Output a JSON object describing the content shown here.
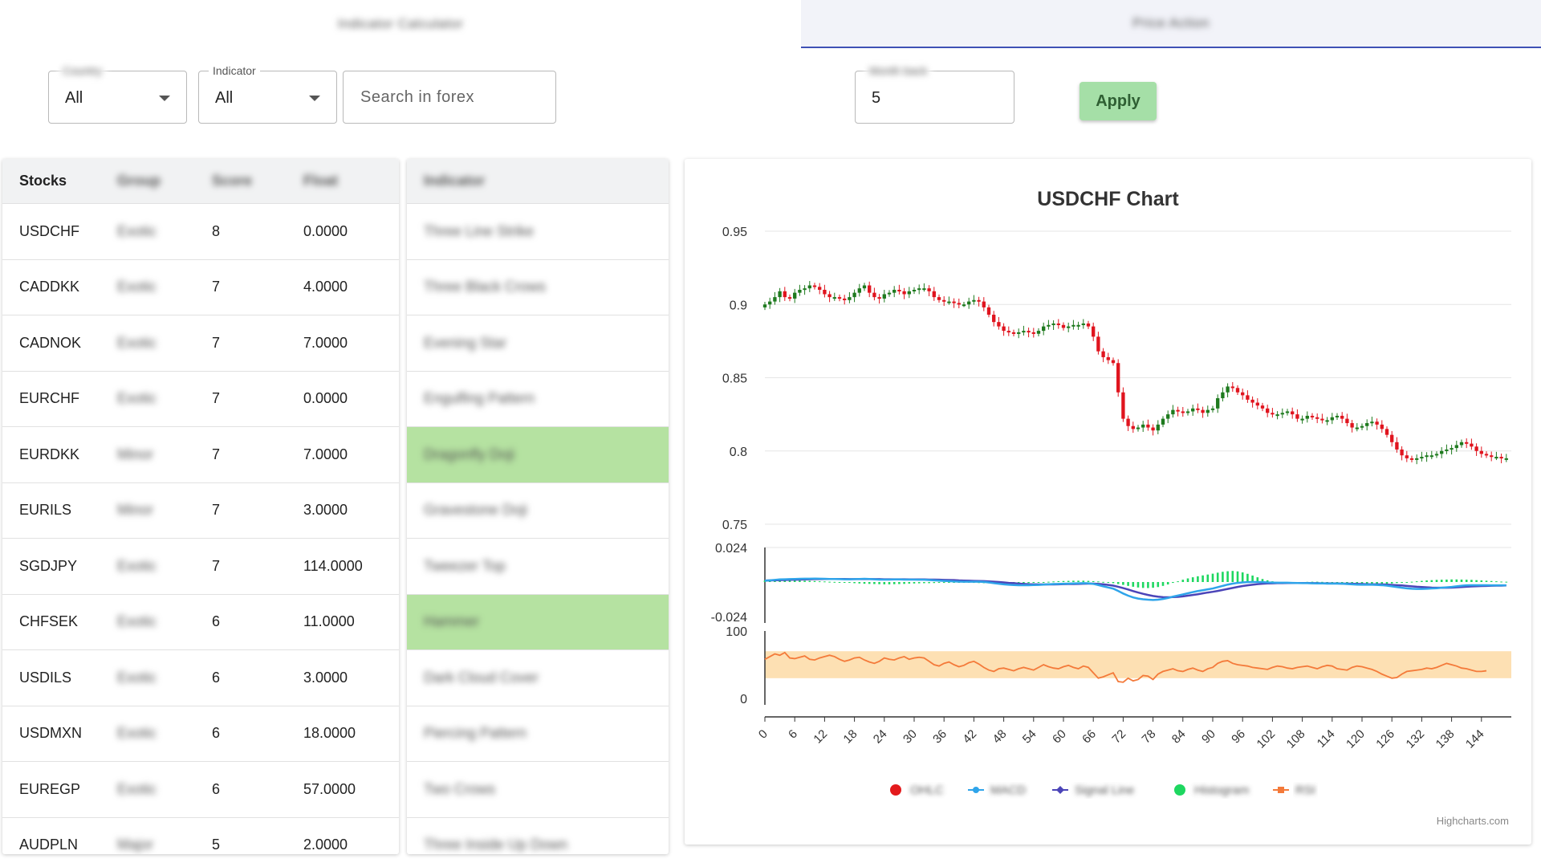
{
  "tabs": [
    {
      "label": "Indicator Calculator"
    },
    {
      "label": "Price Action"
    }
  ],
  "filters": {
    "country": {
      "label": "Country",
      "value": "All"
    },
    "indicator": {
      "label": "Indicator",
      "value": "All"
    },
    "search": {
      "placeholder": "Search in forex"
    },
    "month_back": {
      "label": "Month back",
      "value": "5"
    },
    "apply_label": "Apply"
  },
  "table": {
    "headers": [
      "Stocks",
      "Group",
      "Score",
      "Float"
    ],
    "indicator_header": "Indicator",
    "rows": [
      {
        "stock": "USDCHF",
        "group": "Exotic",
        "score": "8",
        "float": "0.0000",
        "indicator": "Three Line Strike",
        "highlight": false
      },
      {
        "stock": "CADDKK",
        "group": "Exotic",
        "score": "7",
        "float": "4.0000",
        "indicator": "Three Black Crows",
        "highlight": false
      },
      {
        "stock": "CADNOK",
        "group": "Exotic",
        "score": "7",
        "float": "7.0000",
        "indicator": "Evening Star",
        "highlight": false
      },
      {
        "stock": "EURCHF",
        "group": "Exotic",
        "score": "7",
        "float": "0.0000",
        "indicator": "Engulfing Pattern",
        "highlight": false
      },
      {
        "stock": "EURDKK",
        "group": "Minor",
        "score": "7",
        "float": "7.0000",
        "indicator": "Dragonfly Doji",
        "highlight": true
      },
      {
        "stock": "EURILS",
        "group": "Minor",
        "score": "7",
        "float": "3.0000",
        "indicator": "Gravestone Doji",
        "highlight": false
      },
      {
        "stock": "SGDJPY",
        "group": "Exotic",
        "score": "7",
        "float": "114.0000",
        "indicator": "Tweezer Top",
        "highlight": false
      },
      {
        "stock": "CHFSEK",
        "group": "Exotic",
        "score": "6",
        "float": "11.0000",
        "indicator": "Hammer",
        "highlight": true
      },
      {
        "stock": "USDILS",
        "group": "Exotic",
        "score": "6",
        "float": "3.0000",
        "indicator": "Dark Cloud Cover",
        "highlight": false
      },
      {
        "stock": "USDMXN",
        "group": "Exotic",
        "score": "6",
        "float": "18.0000",
        "indicator": "Piercing Pattern",
        "highlight": false
      },
      {
        "stock": "EUREGP",
        "group": "Exotic",
        "score": "6",
        "float": "57.0000",
        "indicator": "Two Crows",
        "highlight": false
      },
      {
        "stock": "AUDPLN",
        "group": "Major",
        "score": "5",
        "float": "2.0000",
        "indicator": "Three Inside Up Down",
        "highlight": false
      }
    ]
  },
  "chart_data": {
    "type": "candlestick",
    "title": "USDCHF Chart",
    "credits": "Highcharts.com",
    "price_axis": {
      "ticks": [
        "0.95",
        "0.9",
        "0.85",
        "0.8",
        "0.75"
      ],
      "ylim": [
        0.75,
        0.95
      ]
    },
    "macd_axis": {
      "ticks": [
        "0.024",
        "-0.024"
      ],
      "ylim": [
        -0.024,
        0.024
      ]
    },
    "rsi_axis": {
      "ticks": [
        "100",
        "0"
      ],
      "ylim": [
        0,
        100
      ],
      "band": [
        30,
        70
      ]
    },
    "x_ticks": [
      "0",
      "6",
      "12",
      "18",
      "24",
      "30",
      "36",
      "42",
      "48",
      "54",
      "60",
      "66",
      "72",
      "78",
      "84",
      "90",
      "96",
      "102",
      "108",
      "114",
      "120",
      "126",
      "132",
      "138",
      "144"
    ],
    "x_max": 150,
    "legend": [
      {
        "name": "OHLC",
        "color": "#e31a1c",
        "symbol": "circle"
      },
      {
        "name": "MACD",
        "color": "#2fa4ea",
        "symbol": "line-dot"
      },
      {
        "name": "Signal Line",
        "color": "#4b44b8",
        "symbol": "line-diamond"
      },
      {
        "name": "Histogram",
        "color": "#1ed760",
        "symbol": "circle"
      },
      {
        "name": "RSI",
        "color": "#f47a3a",
        "symbol": "line-square"
      }
    ],
    "colors": {
      "up": "#1e7a1e",
      "down": "#e0141e",
      "macd": "#2fa4ea",
      "signal": "#4b44b8",
      "histogram": "#1ed760",
      "rsi": "#f47a3a",
      "rsi_band": "#fde0b3"
    },
    "close": [
      0.9,
      0.902,
      0.905,
      0.909,
      0.905,
      0.904,
      0.908,
      0.91,
      0.911,
      0.913,
      0.912,
      0.91,
      0.907,
      0.905,
      0.905,
      0.904,
      0.903,
      0.905,
      0.908,
      0.911,
      0.913,
      0.908,
      0.905,
      0.904,
      0.907,
      0.908,
      0.91,
      0.909,
      0.907,
      0.909,
      0.91,
      0.911,
      0.911,
      0.909,
      0.905,
      0.903,
      0.902,
      0.902,
      0.901,
      0.9,
      0.9,
      0.902,
      0.903,
      0.902,
      0.898,
      0.893,
      0.888,
      0.885,
      0.882,
      0.881,
      0.88,
      0.881,
      0.882,
      0.881,
      0.88,
      0.882,
      0.885,
      0.886,
      0.887,
      0.886,
      0.884,
      0.885,
      0.886,
      0.886,
      0.887,
      0.885,
      0.878,
      0.868,
      0.864,
      0.862,
      0.86,
      0.84,
      0.822,
      0.817,
      0.815,
      0.816,
      0.818,
      0.816,
      0.814,
      0.818,
      0.822,
      0.825,
      0.828,
      0.827,
      0.826,
      0.827,
      0.829,
      0.828,
      0.826,
      0.828,
      0.829,
      0.836,
      0.84,
      0.844,
      0.843,
      0.84,
      0.838,
      0.835,
      0.833,
      0.831,
      0.829,
      0.826,
      0.825,
      0.825,
      0.826,
      0.827,
      0.825,
      0.822,
      0.822,
      0.824,
      0.823,
      0.822,
      0.821,
      0.821,
      0.823,
      0.824,
      0.822,
      0.819,
      0.816,
      0.816,
      0.817,
      0.819,
      0.82,
      0.818,
      0.815,
      0.811,
      0.806,
      0.801,
      0.797,
      0.795,
      0.794,
      0.795,
      0.796,
      0.797,
      0.797,
      0.798,
      0.8,
      0.801,
      0.802,
      0.804,
      0.806,
      0.805,
      0.803,
      0.8,
      0.798,
      0.797,
      0.796,
      0.796,
      0.795,
      0.795
    ],
    "macd": [
      0.001,
      0.0012,
      0.0015,
      0.0018,
      0.0019,
      0.002,
      0.0021,
      0.0022,
      0.0023,
      0.0023,
      0.0024,
      0.0023,
      0.0022,
      0.0021,
      0.0021,
      0.002,
      0.0019,
      0.0019,
      0.002,
      0.0021,
      0.0022,
      0.0021,
      0.0019,
      0.0017,
      0.0017,
      0.0017,
      0.0018,
      0.0018,
      0.0017,
      0.0017,
      0.0017,
      0.0016,
      0.0016,
      0.0014,
      0.0012,
      0.001,
      0.0008,
      0.0006,
      0.0004,
      0.0003,
      0.0002,
      0.0002,
      0.0002,
      0.0002,
      0.0001,
      -0.0003,
      -0.0008,
      -0.0012,
      -0.0016,
      -0.0019,
      -0.0021,
      -0.0022,
      -0.0022,
      -0.0022,
      -0.0021,
      -0.002,
      -0.0018,
      -0.0016,
      -0.0014,
      -0.0013,
      -0.0012,
      -0.0011,
      -0.001,
      -0.0009,
      -0.0008,
      -0.0009,
      -0.0013,
      -0.0021,
      -0.003,
      -0.0038,
      -0.0046,
      -0.0062,
      -0.008,
      -0.0095,
      -0.0107,
      -0.0115,
      -0.012,
      -0.0123,
      -0.0125,
      -0.0123,
      -0.0118,
      -0.0111,
      -0.0102,
      -0.0094,
      -0.0086,
      -0.0078,
      -0.007,
      -0.0063,
      -0.0057,
      -0.0051,
      -0.0045,
      -0.0036,
      -0.0027,
      -0.0018,
      -0.0011,
      -0.0006,
      -0.0003,
      -0.0001,
      0.0,
      0.0,
      -0.0001,
      -0.0003,
      -0.0004,
      -0.0005,
      -0.0005,
      -0.0005,
      -0.0006,
      -0.0007,
      -0.0008,
      -0.0008,
      -0.0009,
      -0.001,
      -0.001,
      -0.0011,
      -0.0011,
      -0.0011,
      -0.0012,
      -0.0014,
      -0.0016,
      -0.0018,
      -0.0019,
      -0.0019,
      -0.0019,
      -0.002,
      -0.0022,
      -0.0025,
      -0.003,
      -0.0035,
      -0.004,
      -0.0044,
      -0.0047,
      -0.0048,
      -0.0048,
      -0.0047,
      -0.0045,
      -0.0043,
      -0.004,
      -0.0037,
      -0.0034,
      -0.003,
      -0.0026,
      -0.0023,
      -0.0022,
      -0.0022,
      -0.0022,
      -0.0022,
      -0.0023,
      -0.0023,
      -0.0023,
      -0.0023
    ],
    "signal": [
      0.001,
      0.0011,
      0.0012,
      0.0013,
      0.0014,
      0.0015,
      0.0016,
      0.0017,
      0.0018,
      0.0019,
      0.002,
      0.002,
      0.0021,
      0.0021,
      0.0021,
      0.0021,
      0.0021,
      0.002,
      0.002,
      0.002,
      0.002,
      0.002,
      0.002,
      0.002,
      0.0019,
      0.0019,
      0.0019,
      0.0019,
      0.0019,
      0.0018,
      0.0018,
      0.0018,
      0.0018,
      0.0017,
      0.0017,
      0.0016,
      0.0015,
      0.0014,
      0.0013,
      0.0011,
      0.001,
      0.0009,
      0.0008,
      0.0007,
      0.0006,
      0.0004,
      0.0002,
      0.0,
      -0.0003,
      -0.0006,
      -0.0008,
      -0.0011,
      -0.0013,
      -0.0015,
      -0.0016,
      -0.0017,
      -0.0017,
      -0.0017,
      -0.0017,
      -0.0016,
      -0.0015,
      -0.0014,
      -0.0014,
      -0.0013,
      -0.0012,
      -0.0011,
      -0.0011,
      -0.0013,
      -0.0016,
      -0.002,
      -0.0025,
      -0.0033,
      -0.0042,
      -0.0052,
      -0.0063,
      -0.0073,
      -0.0082,
      -0.009,
      -0.0097,
      -0.0102,
      -0.0105,
      -0.0106,
      -0.0105,
      -0.0103,
      -0.01,
      -0.0095,
      -0.009,
      -0.0085,
      -0.0079,
      -0.0073,
      -0.0068,
      -0.0062,
      -0.0055,
      -0.0048,
      -0.0041,
      -0.0034,
      -0.0028,
      -0.0023,
      -0.0019,
      -0.0015,
      -0.0012,
      -0.001,
      -0.0009,
      -0.0008,
      -0.0008,
      -0.0007,
      -0.0007,
      -0.0007,
      -0.0007,
      -0.0007,
      -0.0008,
      -0.0008,
      -0.0009,
      -0.0009,
      -0.001,
      -0.001,
      -0.0011,
      -0.0011,
      -0.0012,
      -0.0013,
      -0.0014,
      -0.0015,
      -0.0016,
      -0.0016,
      -0.0017,
      -0.0018,
      -0.002,
      -0.0022,
      -0.0024,
      -0.0027,
      -0.003,
      -0.0033,
      -0.0035,
      -0.0037,
      -0.0039,
      -0.004,
      -0.004,
      -0.004,
      -0.0039,
      -0.0037,
      -0.0035,
      -0.0033,
      -0.0031,
      -0.0029,
      -0.0028,
      -0.0027,
      -0.0026,
      -0.0025,
      -0.0025,
      -0.0024
    ],
    "rsi": [
      58,
      62,
      66,
      64,
      68,
      60,
      59,
      61,
      63,
      58,
      57,
      60,
      62,
      64,
      62,
      58,
      55,
      57,
      60,
      61,
      57,
      54,
      52,
      55,
      60,
      58,
      57,
      60,
      62,
      58,
      60,
      61,
      60,
      55,
      50,
      48,
      52,
      54,
      50,
      47,
      49,
      53,
      55,
      51,
      46,
      42,
      40,
      44,
      45,
      43,
      41,
      44,
      46,
      44,
      42,
      46,
      50,
      47,
      45,
      44,
      47,
      49,
      46,
      44,
      48,
      46,
      38,
      30,
      32,
      35,
      38,
      25,
      24,
      30,
      26,
      28,
      34,
      33,
      28,
      36,
      40,
      42,
      44,
      41,
      40,
      43,
      45,
      42,
      40,
      44,
      46,
      52,
      55,
      56,
      52,
      50,
      49,
      48,
      46,
      45,
      44,
      43,
      46,
      48,
      47,
      45,
      44,
      46,
      47,
      48,
      46,
      44,
      47,
      49,
      48,
      44,
      43,
      42,
      46,
      48,
      47,
      45,
      43,
      40,
      36,
      33,
      30,
      31,
      36,
      40,
      41,
      42,
      43,
      45,
      44,
      46,
      49,
      52,
      50,
      48,
      45,
      44,
      42,
      40,
      40,
      41
    ],
    "histogram": [
      0.001,
      0.0011,
      0.0012,
      0.0012,
      0.0013,
      0.0012,
      0.0011,
      0.001,
      0.0009,
      0.0008,
      0.0007,
      0.0005,
      0.0004,
      0.0002,
      0.0001,
      -0.0002,
      -0.0004,
      -0.0006,
      -0.0008,
      -0.001,
      -0.0012,
      -0.0013,
      -0.0014,
      -0.0015,
      -0.0016,
      -0.0016,
      -0.0015,
      -0.0014,
      -0.0013,
      -0.0011,
      -0.001,
      -0.0009,
      -0.0008,
      -0.0008,
      -0.0007,
      -0.0006,
      -0.0006,
      -0.0005,
      -0.0005,
      -0.0004,
      -0.0004,
      -0.0005,
      -0.0006,
      -0.0007,
      -0.0008,
      -0.0009,
      -0.001,
      -0.0011,
      -0.0012,
      -0.0012,
      -0.0011,
      -0.001,
      -0.0009,
      -0.0007,
      -0.0005,
      -0.0003,
      -0.0001,
      0.0002,
      0.0004,
      0.0006,
      0.0007,
      0.0008,
      0.0009,
      0.0009,
      0.0009,
      0.0008,
      0.0006,
      0.0004,
      0.0001,
      -0.0003,
      -0.0008,
      -0.0014,
      -0.002,
      -0.0027,
      -0.0033,
      -0.0038,
      -0.0041,
      -0.0042,
      -0.004,
      -0.0035,
      -0.0027,
      -0.0017,
      -0.0006,
      0.0005,
      0.0016,
      0.0025,
      0.0033,
      0.004,
      0.0046,
      0.0052,
      0.0058,
      0.0065,
      0.0071,
      0.0075,
      0.0077,
      0.0074,
      0.0067,
      0.0057,
      0.0045,
      0.0033,
      0.0021,
      0.0012,
      0.0005,
      0.0001,
      -0.0001,
      -0.0002,
      -0.0002,
      -0.0001,
      0.0,
      0.0001,
      0.0002,
      0.0002,
      0.0001,
      0.0,
      -0.0001,
      -0.0002,
      -0.0003,
      -0.0004,
      -0.0006,
      -0.0008,
      -0.001,
      -0.0012,
      -0.0014,
      -0.0015,
      -0.0015,
      -0.0013,
      -0.001,
      -0.0007,
      -0.0004,
      -0.0001,
      0.0002,
      0.0005,
      0.0008,
      0.0011,
      0.0013,
      0.0015,
      0.0016,
      0.0017,
      0.0018,
      0.0018,
      0.0017,
      0.0016,
      0.0015,
      0.0013,
      0.0011,
      0.0009,
      0.0007,
      0.0005,
      0.0003,
      0.0002
    ]
  }
}
